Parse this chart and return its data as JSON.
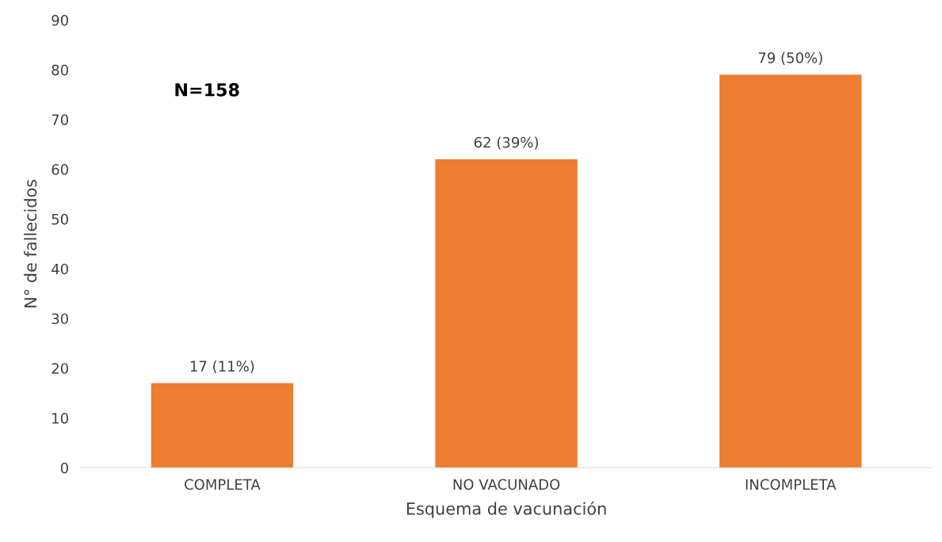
{
  "chart_data": {
    "type": "bar",
    "categories": [
      "COMPLETA",
      "NO VACUNADO",
      "INCOMPLETA"
    ],
    "values": [
      17,
      62,
      79
    ],
    "value_labels": [
      "17 (11%)",
      "62 (39%)",
      "79 (50%)"
    ],
    "color": "#ed7d31",
    "xlabel": "Esquema de vacunación",
    "ylabel": "N° de fallecidos",
    "ylim": [
      0,
      90
    ],
    "yticks": [
      0,
      10,
      20,
      30,
      40,
      50,
      60,
      70,
      80,
      90
    ],
    "annotations": [
      "N=158"
    ],
    "grid": false,
    "legend": false
  }
}
